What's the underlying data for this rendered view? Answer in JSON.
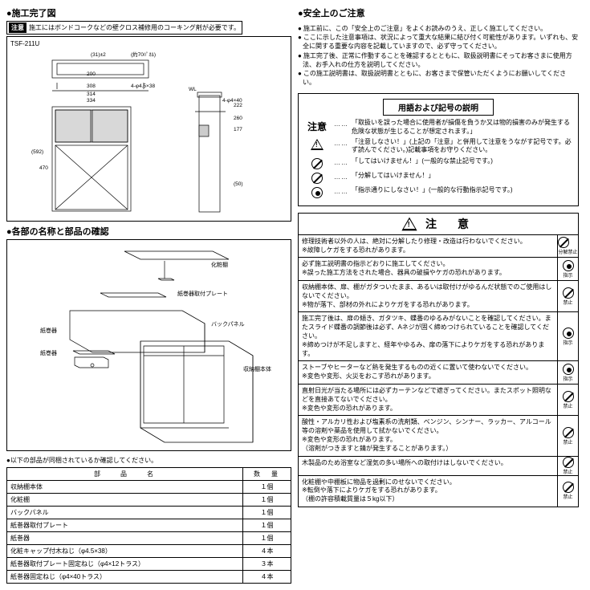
{
  "left": {
    "section1_title": "●施工完了図",
    "warn_label": "注意",
    "warn_text": "施工にはボンドコークなどの壁クロス補修用のコーキング剤が必要です。",
    "model": "TSF-211U",
    "dims": {
      "a": "200",
      "b": "308",
      "c": "314",
      "d": "334",
      "e": "(31)±2",
      "f": "(約70ﾊﾟﾈﾙ)",
      "g": "4-φ4.5×38",
      "h": "WL",
      "i": "4-φ4×40",
      "j": "177",
      "k": "260",
      "l": "470",
      "m": "(592)",
      "n": "222",
      "o": "(50)"
    },
    "section2_title": "●各部の名称と部品の確認",
    "labels": {
      "p1": "化粧棚",
      "p2": "紙巻器取付プレート",
      "p3": "バックパネル",
      "p4": "紙巻器",
      "p5": "収納棚本体"
    },
    "parts_note": "●以下の部品が同梱されているか確認してください。",
    "table": {
      "col1": "部　　品　　名",
      "col2": "数　量",
      "rows": [
        {
          "name": "収納棚本体",
          "qty": "１個"
        },
        {
          "name": "化粧棚",
          "qty": "１個"
        },
        {
          "name": "バックパネル",
          "qty": "１個"
        },
        {
          "name": "紙巻器取付プレート",
          "qty": "１個"
        },
        {
          "name": "紙巻器",
          "qty": "１個"
        },
        {
          "name": "化粧キャップ付木ねじ（φ4.5×38）",
          "qty": "４本"
        },
        {
          "name": "紙巻器取付プレート固定ねじ（φ4×12トラス）",
          "qty": "３本"
        },
        {
          "name": "紙巻器固定ねじ（φ4×40トラス）",
          "qty": "４本"
        }
      ]
    }
  },
  "right": {
    "safety_title": "●安全上のご注意",
    "safety_bullets": [
      "施工前に、この「安全上のご注意」をよくお読みのうえ、正しく施工してください。",
      "ここに示した注意事項は、状況によって重大な結果に結び付く可能性があります。いずれも、安全に関する重要な内容を記載していますので、必ず守ってください。",
      "施工完了後、正常に作動することを確認するとともに、取扱説明書にそってお客さまに使用方法、お手入れの仕方を説明してください。",
      "この施工説明書は、取扱説明書とともに、お客さまで保管いただくようにお願いしてください。"
    ],
    "legend_title": "用語および記号の説明",
    "attention": "注意",
    "legend_rows": [
      {
        "icon": "tri",
        "text": "「取扱いを誤った場合に使用者が損傷を負うか又は物的損害のみが発生する危険な状態が生じることが想定されます。」"
      },
      {
        "icon": "tri",
        "text": "「注意しなさい！」(上記の「注意」と併用して注意をうながす記号です。必ず読んでください。)記載事項をお守りください。"
      },
      {
        "icon": "slash",
        "text": "「してはいけません！」(一般的な禁止記号です。)"
      },
      {
        "icon": "slash",
        "text": "「分解してはいけません！」"
      },
      {
        "icon": "dot",
        "text": "「指示通りにしなさい！」(一般的な行動指示記号です。)"
      }
    ],
    "caution_title": "注　意",
    "caution_rows": [
      {
        "text": "修理技術者以外の人は、絶対に分解したり修理・改造は行わないでください。\n※故障しケガをする恐れがあります。",
        "icon": "slash",
        "note": "分解禁止"
      },
      {
        "text": "必ず施工説明書の指示どおりに施工してください。\n※誤った施工方法をされた場合、器具の破損やケガの恐れがあります。",
        "icon": "dot",
        "note": "指示"
      },
      {
        "text": "収納棚本体、扉、棚がガタついたまま、あるいは取付けがゆるんだ状態でのご使用はしないでください。\n※物が落下、部材の外れによりケガをする恐れがあります。",
        "icon": "slash",
        "note": "禁止"
      },
      {
        "text": "施工完了後は、扉の傾き、ガタツキ、蝶番のゆるみがないことを確認してください。またスライド蝶番の調節後は必ず、Aネジが固く締めつけられていることを確認してください。\n※締めつけが不足しますと、経年やゆるみ、扉の落下によりケガをする恐れがあります。",
        "icon": "dot",
        "note": "指示"
      },
      {
        "text": "ストーブやヒーターなど熱を発生するものの近くに置いて使わないでください。\n※変色や変形、火災をおこす恐れがあります。",
        "icon": "dot",
        "note": "指示"
      },
      {
        "text": "直射日光が当たる場所には必ずカーテンなどで遮ぎってください。またスポット照明などを直接あてないでください。\n※変色や変形の恐れがあります。",
        "icon": "slash",
        "note": "禁止"
      },
      {
        "text": "酸性・アルカリ性および塩素系の洗剤類、ベンジン、シンナー、ラッカー、アルコール等の溶剤や薬品を使用して拭かないでください。\n※変色や変形の恐れがあります。\n（溶剤がつきますと錆が発生することがあります。）",
        "icon": "slash",
        "note": "禁止"
      },
      {
        "text": "木製品のため浴室など湿気の多い場所への取付けはしないでください。",
        "icon": "slash",
        "note": "禁止"
      },
      {
        "text": "化粧棚や中棚板に物品を過剰にのせないでください。\n※転倒や落下によりケガをする恐れがあります。\n（棚の許容積載質量は５kg以下）",
        "icon": "slash",
        "note": "禁止"
      }
    ]
  }
}
